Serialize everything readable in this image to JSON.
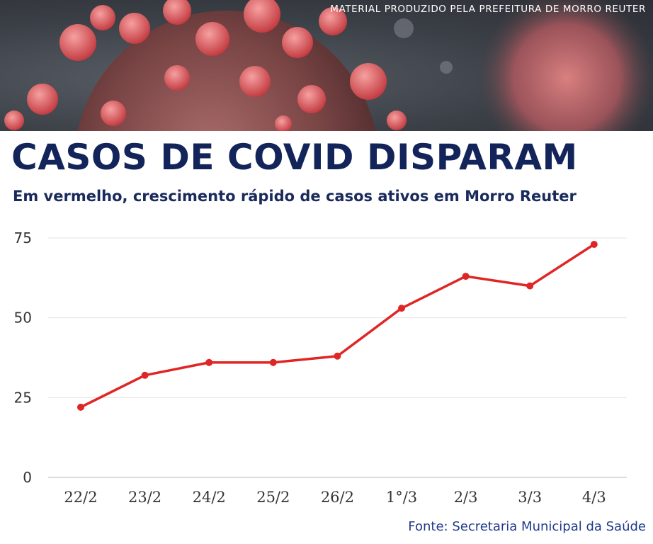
{
  "banner": {
    "credit": "MATERIAL PRODUZIDO PELA PREFEITURA DE MORRO REUTER"
  },
  "header": {
    "title": "CASOS DE COVID DISPARAM",
    "subtitle": "Em vermelho, crescimento rápido de casos ativos em Morro Reuter"
  },
  "footer": {
    "source": "Fonte: Secretaria Municipal da Saúde"
  },
  "chart_data": {
    "type": "line",
    "categories": [
      "22/2",
      "23/2",
      "24/2",
      "25/2",
      "26/2",
      "1°/3",
      "2/3",
      "3/3",
      "4/3"
    ],
    "series": [
      {
        "values": [
          22,
          32,
          36,
          36,
          38,
          53,
          63,
          60,
          73
        ],
        "color": "#e02525"
      }
    ],
    "yticks": [
      0,
      25,
      50,
      75
    ],
    "ylim": [
      0,
      75
    ],
    "grid": true,
    "colors": {
      "line": "#e02525",
      "grid": "#e3e3e3",
      "tick_text": "#333333"
    }
  }
}
